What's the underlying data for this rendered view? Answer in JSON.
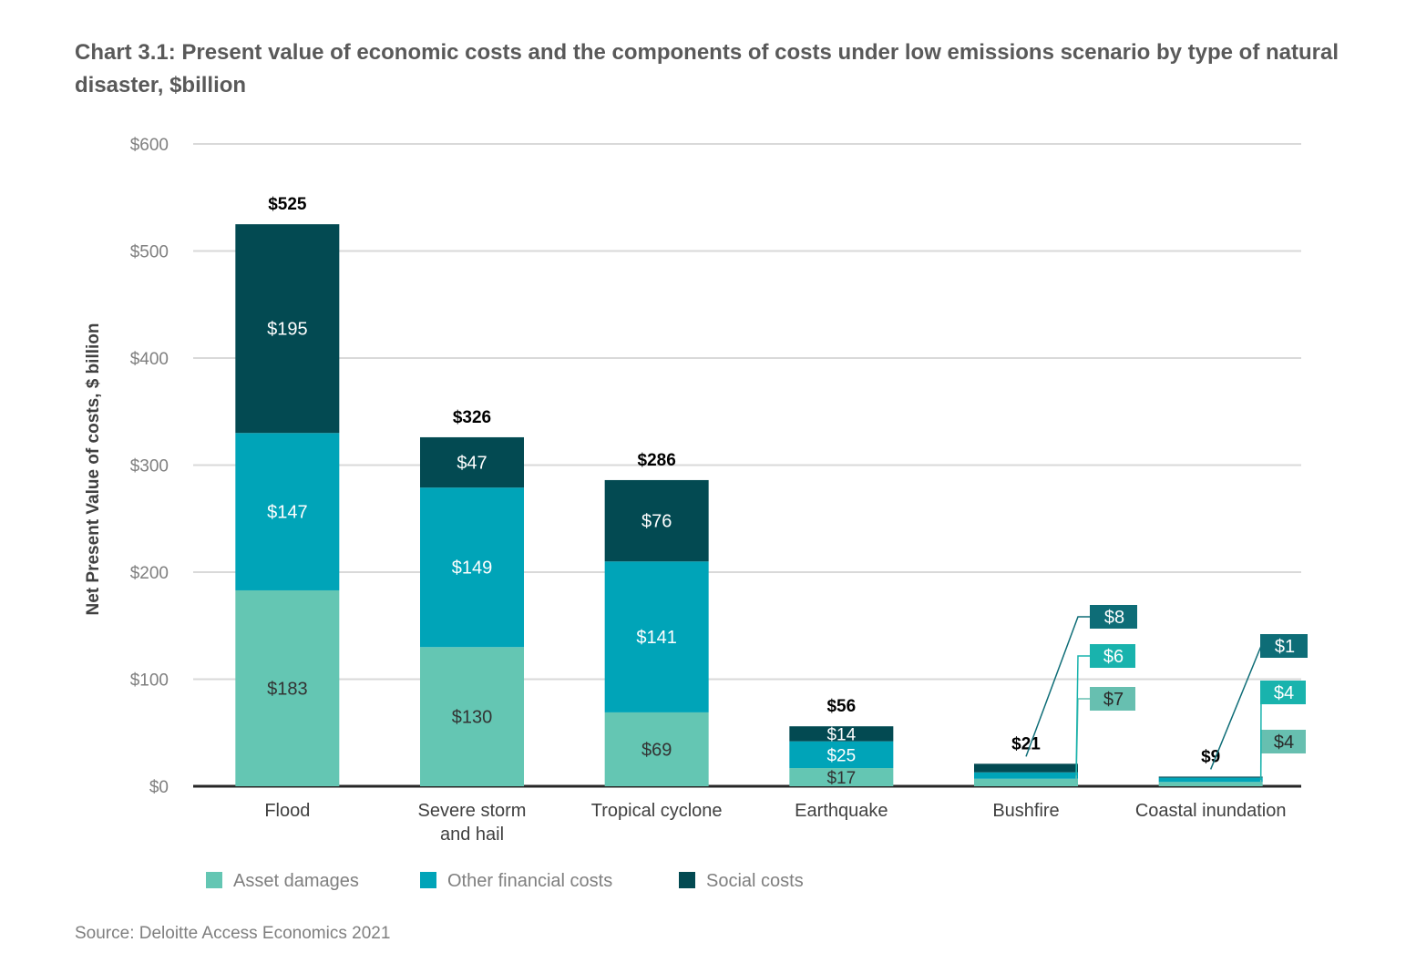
{
  "title": "Chart 3.1: Present value of economic costs and the components of costs under low emissions scenario by type of natural disaster, $billion",
  "source": "Source: Deloitte Access Economics 2021",
  "colors": {
    "asset": "#64c6b3",
    "other": "#00a4b8",
    "social": "#034a52",
    "axis": "#262626",
    "grid": "#d9d9d9",
    "tick": "#7f7f7f",
    "callout_social": "#0e6d77",
    "callout_other": "#19b3ad",
    "callout_asset": "#67bfb0"
  },
  "chart_data": {
    "type": "bar",
    "stacked": true,
    "ylabel": "Net Present Value of costs, $ billion",
    "xlabel": "",
    "ylim": [
      0,
      600
    ],
    "yticks": [
      0,
      100,
      200,
      300,
      400,
      500,
      600
    ],
    "ytick_labels": [
      "$0",
      "$100",
      "$200",
      "$300",
      "$400",
      "$500",
      "$600"
    ],
    "grid": true,
    "categories": [
      [
        "Flood"
      ],
      [
        "Severe storm",
        "and hail"
      ],
      [
        "Tropical cyclone"
      ],
      [
        "Earthquake"
      ],
      [
        "Bushfire"
      ],
      [
        "Coastal inundation"
      ]
    ],
    "series": [
      {
        "name": "Asset damages",
        "key": "asset",
        "values": [
          183,
          130,
          69,
          17,
          7,
          4
        ],
        "labels": [
          "$183",
          "$130",
          "$69",
          "$17",
          "$7",
          "$4"
        ]
      },
      {
        "name": "Other financial costs",
        "key": "other",
        "values": [
          147,
          149,
          141,
          25,
          6,
          4
        ],
        "labels": [
          "$147",
          "$149",
          "$141",
          "$25",
          "$6",
          "$4"
        ]
      },
      {
        "name": "Social costs",
        "key": "social",
        "values": [
          195,
          47,
          76,
          14,
          8,
          1
        ],
        "labels": [
          "$195",
          "$47",
          "$76",
          "$14",
          "$8",
          "$1"
        ]
      }
    ],
    "totals": [
      525,
      326,
      286,
      56,
      21,
      9
    ],
    "total_labels": [
      "$525",
      "$326",
      "$286",
      "$56",
      "$21",
      "$9"
    ],
    "callouts": [
      true,
      true,
      true,
      true,
      false,
      false
    ],
    "legend": "bottom-left"
  }
}
